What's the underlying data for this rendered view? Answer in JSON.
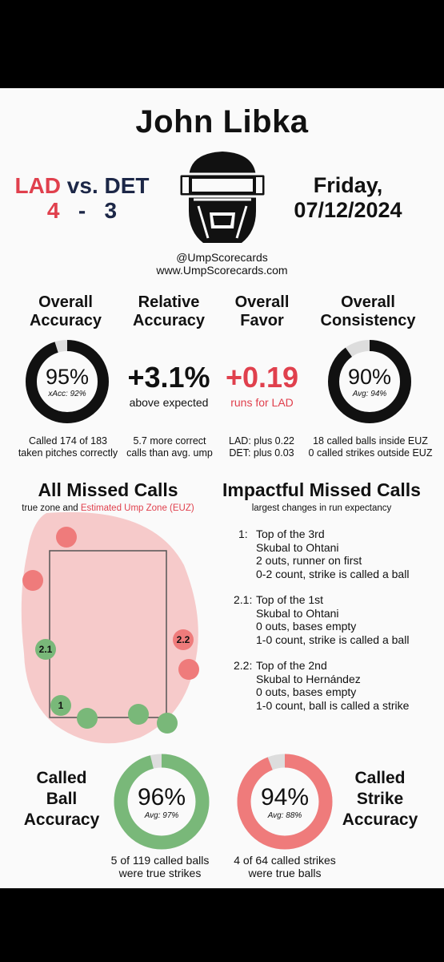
{
  "umpire_name": "John Libka",
  "game": {
    "away_team": "LAD",
    "vs": "vs.",
    "home_team": "DET",
    "away_score": "4",
    "dash": "-",
    "home_score": "3",
    "day": "Friday,",
    "date": "07/12/2024"
  },
  "handles": {
    "twitter": "@UmpScorecards",
    "site": "www.UmpScorecards.com"
  },
  "stats": {
    "overall_accuracy": {
      "heading1": "Overall",
      "heading2": "Accuracy",
      "value": "95%",
      "sub": "xAcc: 92%",
      "fraction": 0.95,
      "note1": "Called 174 of 183",
      "note2": "taken pitches correctly"
    },
    "relative_accuracy": {
      "heading1": "Relative",
      "heading2": "Accuracy",
      "value": "+3.1%",
      "sub": "above expected",
      "note1": "5.7 more correct",
      "note2": "calls than avg. ump"
    },
    "overall_favor": {
      "heading1": "Overall",
      "heading2": "Favor",
      "value": "+0.19",
      "sub": "runs for LAD",
      "note1": "LAD: plus 0.22",
      "note2": "DET: plus 0.03"
    },
    "overall_consistency": {
      "heading1": "Overall",
      "heading2": "Consistency",
      "value": "90%",
      "sub": "Avg: 94%",
      "fraction": 0.9,
      "note1": "18 called balls inside EUZ",
      "note2": "0 called strikes outside EUZ"
    }
  },
  "missed_calls": {
    "title": "All Missed Calls",
    "subtitle_a": "true zone and",
    "subtitle_b": "Estimated Ump Zone (EUZ)",
    "labels": {
      "call_1": "1",
      "call_21": "2.1",
      "call_22": "2.2"
    }
  },
  "impactful": {
    "title": "Impactful Missed Calls",
    "subtitle": "largest changes in run expectancy",
    "calls": [
      {
        "num": "1:",
        "lines": [
          "Top of the 3rd",
          "Skubal to Ohtani",
          "2 outs, runner on first",
          "0-2 count, strike is called a ball"
        ]
      },
      {
        "num": "2.1:",
        "lines": [
          "Top of the 1st",
          "Skubal to Ohtani",
          "0 outs, bases empty",
          "1-0 count, strike is called a ball"
        ]
      },
      {
        "num": "2.2:",
        "lines": [
          "Top of the 2nd",
          "Skubal to Hernández",
          "0 outs, bases empty",
          "1-0 count, ball is called a strike"
        ]
      }
    ]
  },
  "called_ball": {
    "h1": "Called",
    "h2": "Ball",
    "h3": "Accuracy",
    "value": "96%",
    "sub": "Avg: 97%",
    "fraction": 0.96,
    "note1": "5 of 119 called balls",
    "note2": "were true strikes"
  },
  "called_strike": {
    "h1": "Called",
    "h2": "Strike",
    "h3": "Accuracy",
    "value": "94%",
    "sub": "Avg: 88%",
    "fraction": 0.94,
    "note1": "4 of 64 called strikes",
    "note2": "were true balls"
  },
  "colors": {
    "red": "#e0404d",
    "navy": "#1c2747",
    "green": "#79b879",
    "salmon": "#ef7b7b",
    "zone": "#f6caca",
    "ring_track": "#dddddd"
  },
  "icons": {
    "logo": "umpire-mask-icon"
  }
}
